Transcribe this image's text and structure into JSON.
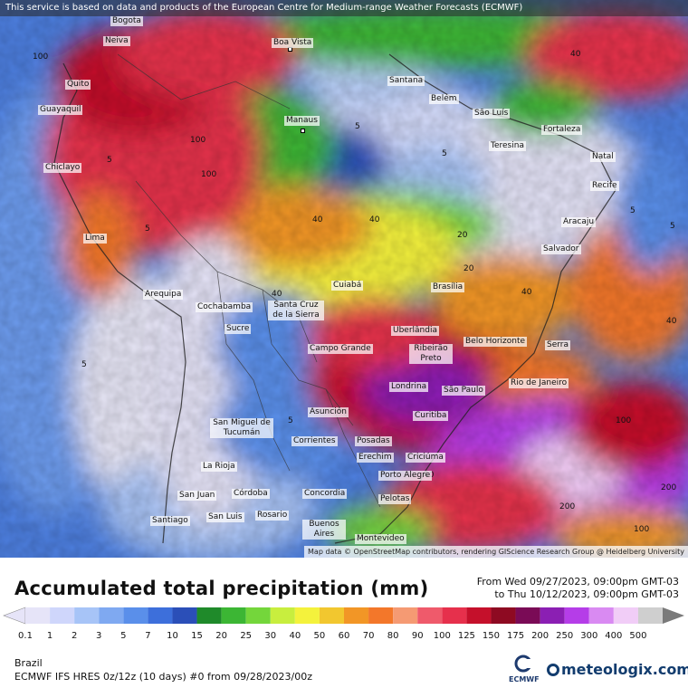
{
  "attribution_top": "This service is based on data and products of the European Centre for Medium-range Weather Forecasts (ECMWF)",
  "attribution_bottom": "Map data © OpenStreetMap contributors, rendering GIScience Research Group @ Heidelberg University",
  "title": "Accumulated total precipitation (mm)",
  "period_from": "From Wed 09/27/2023, 09:00pm GMT-03",
  "period_to": "to Thu 10/12/2023, 09:00pm GMT-03",
  "region": "Brazil",
  "model": "ECMWF IFS HRES 0z/12z (10 days) #0 from  09/28/2023/00z",
  "ecmwf_label": "ECMWF",
  "brand": "meteologix.com",
  "scale": [
    {
      "label": "0.1",
      "color": "#e6e4f8"
    },
    {
      "label": "1",
      "color": "#cfd6fb"
    },
    {
      "label": "2",
      "color": "#a7c4f7"
    },
    {
      "label": "3",
      "color": "#7fa9f1"
    },
    {
      "label": "5",
      "color": "#5a8fea"
    },
    {
      "label": "7",
      "color": "#3d6fdb"
    },
    {
      "label": "10",
      "color": "#2b4fb8"
    },
    {
      "label": "15",
      "color": "#1f8a2a"
    },
    {
      "label": "20",
      "color": "#3cb634"
    },
    {
      "label": "25",
      "color": "#74d63b"
    },
    {
      "label": "30",
      "color": "#c8ee3e"
    },
    {
      "label": "40",
      "color": "#f4f23c"
    },
    {
      "label": "50",
      "color": "#f2c72f"
    },
    {
      "label": "60",
      "color": "#f29626"
    },
    {
      "label": "70",
      "color": "#f3772a"
    },
    {
      "label": "80",
      "color": "#f59a73"
    },
    {
      "label": "90",
      "color": "#ef5a6b"
    },
    {
      "label": "100",
      "color": "#e6304c"
    },
    {
      "label": "125",
      "color": "#c5102b"
    },
    {
      "label": "150",
      "color": "#8e0a22"
    },
    {
      "label": "175",
      "color": "#7a0b56"
    },
    {
      "label": "200",
      "color": "#8b1fb3"
    },
    {
      "label": "250",
      "color": "#b53de8"
    },
    {
      "label": "300",
      "color": "#d98af2"
    },
    {
      "label": "400",
      "color": "#f1cdf7"
    },
    {
      "label": "500",
      "color": "#cfcfcf"
    }
  ],
  "cities": [
    {
      "name": "Bogota"
    },
    {
      "name": "Neiva"
    },
    {
      "name": "Boa Vista"
    },
    {
      "name": "Quito"
    },
    {
      "name": "Santana"
    },
    {
      "name": "Belém"
    },
    {
      "name": "Guayaquil"
    },
    {
      "name": "São Luís"
    },
    {
      "name": "Manaus"
    },
    {
      "name": "Fortaleza"
    },
    {
      "name": "Teresina"
    },
    {
      "name": "Natal"
    },
    {
      "name": "Chiclayo"
    },
    {
      "name": "Recife"
    },
    {
      "name": "Aracaju"
    },
    {
      "name": "Lima"
    },
    {
      "name": "Salvador"
    },
    {
      "name": "Cuiabá"
    },
    {
      "name": "Brasília"
    },
    {
      "name": "Arequipa"
    },
    {
      "name": "Cochabamba"
    },
    {
      "name": "Santa Cruz de la Sierra"
    },
    {
      "name": "Uberlândia"
    },
    {
      "name": "Sucre"
    },
    {
      "name": "Belo Horizonte"
    },
    {
      "name": "Serra"
    },
    {
      "name": "Campo Grande"
    },
    {
      "name": "Ribeirão Preto"
    },
    {
      "name": "Rio de Janeiro"
    },
    {
      "name": "São Paulo"
    },
    {
      "name": "Londrina"
    },
    {
      "name": "Asunción"
    },
    {
      "name": "Curitiba"
    },
    {
      "name": "San Miguel de Tucumán"
    },
    {
      "name": "Corrientes"
    },
    {
      "name": "Posadas"
    },
    {
      "name": "Erechim"
    },
    {
      "name": "Criciúma"
    },
    {
      "name": "La Rioja"
    },
    {
      "name": "Porto Alegre"
    },
    {
      "name": "San Juan"
    },
    {
      "name": "Córdoba"
    },
    {
      "name": "Concordia"
    },
    {
      "name": "Pelotas"
    },
    {
      "name": "Rosario"
    },
    {
      "name": "Santiago"
    },
    {
      "name": "San Luis"
    },
    {
      "name": "Buenos Aires"
    },
    {
      "name": "Montevideo"
    }
  ],
  "iso_values": [
    "100",
    "40",
    "5",
    "40",
    "20",
    "100",
    "40",
    "5",
    "100",
    "5",
    "40",
    "5",
    "100",
    "5",
    "40",
    "20",
    "5",
    "40",
    "100",
    "200",
    "200",
    "5",
    "5",
    "40"
  ]
}
